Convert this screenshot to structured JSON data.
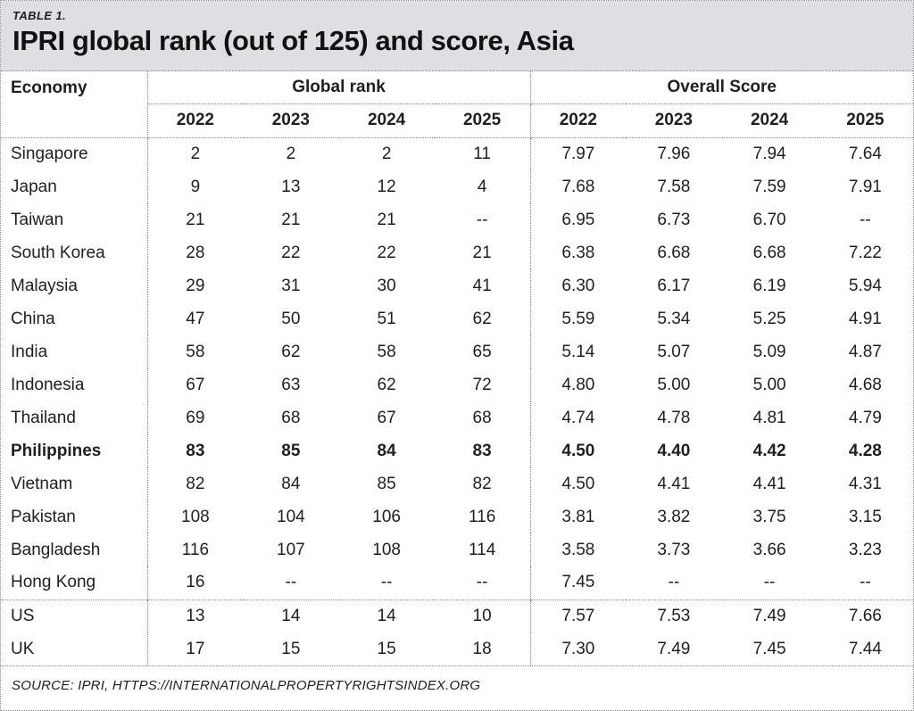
{
  "title_bar": {
    "label": "TABLE 1.",
    "title": "IPRI global rank (out of 125) and score, Asia"
  },
  "table": {
    "economy_header": "Economy",
    "group_headers": [
      "Global rank",
      "Overall Score"
    ],
    "years": [
      "2022",
      "2023",
      "2024",
      "2025"
    ],
    "rows": [
      {
        "economy": "Singapore",
        "bold": false,
        "rank": [
          "2",
          "2",
          "2",
          "11"
        ],
        "score": [
          "7.97",
          "7.96",
          "7.94",
          "7.64"
        ]
      },
      {
        "economy": "Japan",
        "bold": false,
        "rank": [
          "9",
          "13",
          "12",
          "4"
        ],
        "score": [
          "7.68",
          "7.58",
          "7.59",
          "7.91"
        ]
      },
      {
        "economy": "Taiwan",
        "bold": false,
        "rank": [
          "21",
          "21",
          "21",
          "--"
        ],
        "score": [
          "6.95",
          "6.73",
          "6.70",
          "--"
        ]
      },
      {
        "economy": "South Korea",
        "bold": false,
        "rank": [
          "28",
          "22",
          "22",
          "21"
        ],
        "score": [
          "6.38",
          "6.68",
          "6.68",
          "7.22"
        ]
      },
      {
        "economy": "Malaysia",
        "bold": false,
        "rank": [
          "29",
          "31",
          "30",
          "41"
        ],
        "score": [
          "6.30",
          "6.17",
          "6.19",
          "5.94"
        ]
      },
      {
        "economy": "China",
        "bold": false,
        "rank": [
          "47",
          "50",
          "51",
          "62"
        ],
        "score": [
          "5.59",
          "5.34",
          "5.25",
          "4.91"
        ]
      },
      {
        "economy": "India",
        "bold": false,
        "rank": [
          "58",
          "62",
          "58",
          "65"
        ],
        "score": [
          "5.14",
          "5.07",
          "5.09",
          "4.87"
        ]
      },
      {
        "economy": "Indonesia",
        "bold": false,
        "rank": [
          "67",
          "63",
          "62",
          "72"
        ],
        "score": [
          "4.80",
          "5.00",
          "5.00",
          "4.68"
        ]
      },
      {
        "economy": "Thailand",
        "bold": false,
        "rank": [
          "69",
          "68",
          "67",
          "68"
        ],
        "score": [
          "4.74",
          "4.78",
          "4.81",
          "4.79"
        ]
      },
      {
        "economy": "Philippines",
        "bold": true,
        "rank": [
          "83",
          "85",
          "84",
          "83"
        ],
        "score": [
          "4.50",
          "4.40",
          "4.42",
          "4.28"
        ]
      },
      {
        "economy": "Vietnam",
        "bold": false,
        "rank": [
          "82",
          "84",
          "85",
          "82"
        ],
        "score": [
          "4.50",
          "4.41",
          "4.41",
          "4.31"
        ]
      },
      {
        "economy": "Pakistan",
        "bold": false,
        "rank": [
          "108",
          "104",
          "106",
          "116"
        ],
        "score": [
          "3.81",
          "3.82",
          "3.75",
          "3.15"
        ]
      },
      {
        "economy": "Bangladesh",
        "bold": false,
        "rank": [
          "116",
          "107",
          "108",
          "114"
        ],
        "score": [
          "3.58",
          "3.73",
          "3.66",
          "3.23"
        ]
      },
      {
        "economy": "Hong Kong",
        "bold": false,
        "rank": [
          "16",
          "--",
          "--",
          "--"
        ],
        "score": [
          "7.45",
          "--",
          "--",
          "--"
        ]
      }
    ],
    "western_rows": [
      {
        "economy": "US",
        "bold": false,
        "rank": [
          "13",
          "14",
          "14",
          "10"
        ],
        "score": [
          "7.57",
          "7.53",
          "7.49",
          "7.66"
        ]
      },
      {
        "economy": "UK",
        "bold": false,
        "rank": [
          "17",
          "15",
          "15",
          "18"
        ],
        "score": [
          "7.30",
          "7.49",
          "7.45",
          "7.44"
        ]
      }
    ]
  },
  "source": "SOURCE: IPRI, HTTPS://INTERNATIONALPROPERTYRIGHTSINDEX.ORG",
  "colors": {
    "title_bg": "#dde0e1",
    "border": "#8a8a8a",
    "text": "#1f1f1f"
  },
  "chart_data": {
    "type": "table",
    "title": "IPRI global rank (out of 125) and score, Asia",
    "column_groups": [
      "Global rank",
      "Overall Score"
    ],
    "years": [
      2022,
      2023,
      2024,
      2025
    ],
    "rows": [
      {
        "economy": "Singapore",
        "global_rank": [
          2,
          2,
          2,
          11
        ],
        "overall_score": [
          7.97,
          7.96,
          7.94,
          7.64
        ]
      },
      {
        "economy": "Japan",
        "global_rank": [
          9,
          13,
          12,
          4
        ],
        "overall_score": [
          7.68,
          7.58,
          7.59,
          7.91
        ]
      },
      {
        "economy": "Taiwan",
        "global_rank": [
          21,
          21,
          21,
          null
        ],
        "overall_score": [
          6.95,
          6.73,
          6.7,
          null
        ]
      },
      {
        "economy": "South Korea",
        "global_rank": [
          28,
          22,
          22,
          21
        ],
        "overall_score": [
          6.38,
          6.68,
          6.68,
          7.22
        ]
      },
      {
        "economy": "Malaysia",
        "global_rank": [
          29,
          31,
          30,
          41
        ],
        "overall_score": [
          6.3,
          6.17,
          6.19,
          5.94
        ]
      },
      {
        "economy": "China",
        "global_rank": [
          47,
          50,
          51,
          62
        ],
        "overall_score": [
          5.59,
          5.34,
          5.25,
          4.91
        ]
      },
      {
        "economy": "India",
        "global_rank": [
          58,
          62,
          58,
          65
        ],
        "overall_score": [
          5.14,
          5.07,
          5.09,
          4.87
        ]
      },
      {
        "economy": "Indonesia",
        "global_rank": [
          67,
          63,
          62,
          72
        ],
        "overall_score": [
          4.8,
          5.0,
          5.0,
          4.68
        ]
      },
      {
        "economy": "Thailand",
        "global_rank": [
          69,
          68,
          67,
          68
        ],
        "overall_score": [
          4.74,
          4.78,
          4.81,
          4.79
        ]
      },
      {
        "economy": "Philippines",
        "global_rank": [
          83,
          85,
          84,
          83
        ],
        "overall_score": [
          4.5,
          4.4,
          4.42,
          4.28
        ]
      },
      {
        "economy": "Vietnam",
        "global_rank": [
          82,
          84,
          85,
          82
        ],
        "overall_score": [
          4.5,
          4.41,
          4.41,
          4.31
        ]
      },
      {
        "economy": "Pakistan",
        "global_rank": [
          108,
          104,
          106,
          116
        ],
        "overall_score": [
          3.81,
          3.82,
          3.75,
          3.15
        ]
      },
      {
        "economy": "Bangladesh",
        "global_rank": [
          116,
          107,
          108,
          114
        ],
        "overall_score": [
          3.58,
          3.73,
          3.66,
          3.23
        ]
      },
      {
        "economy": "Hong Kong",
        "global_rank": [
          16,
          null,
          null,
          null
        ],
        "overall_score": [
          7.45,
          null,
          null,
          null
        ]
      },
      {
        "economy": "US",
        "global_rank": [
          13,
          14,
          14,
          10
        ],
        "overall_score": [
          7.57,
          7.53,
          7.49,
          7.66
        ]
      },
      {
        "economy": "UK",
        "global_rank": [
          17,
          15,
          15,
          18
        ],
        "overall_score": [
          7.3,
          7.49,
          7.45,
          7.44
        ]
      }
    ]
  }
}
